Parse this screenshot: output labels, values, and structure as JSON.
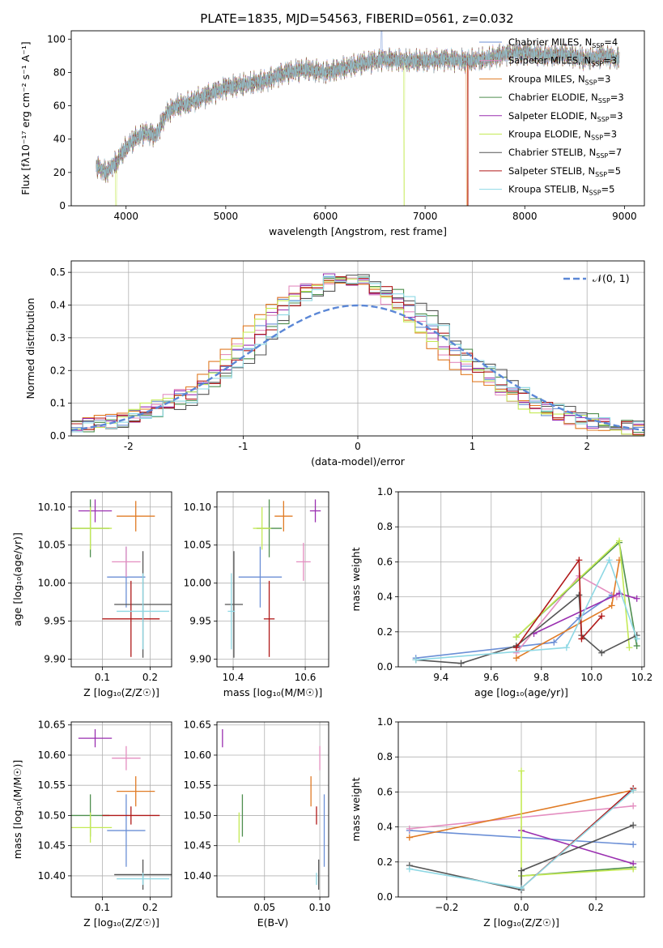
{
  "figure_title": "PLATE=1835, MJD=54563, FIBERID=0561, z=0.032",
  "colors": {
    "chabrier_miles": "#6b8fd6",
    "salpeter_miles": "#e48ec0",
    "kroupa_miles": "#e07b25",
    "chabrier_elodie": "#4f8f4f",
    "salpeter_elodie": "#9a2fb0",
    "kroupa_elodie": "#c4ea55",
    "chabrier_stelib": "#555555",
    "salpeter_stelib": "#b01818",
    "kroupa_stelib": "#8ed8e4",
    "gaussian": "#5b87d6"
  },
  "chart_data": [
    {
      "id": "spectrum",
      "type": "line",
      "xlabel": "wavelength [Angstrom, rest frame]",
      "ylabel": "Flux [fλ10⁻¹⁷ erg cm⁻² s⁻¹ A⁻¹]",
      "xlim": [
        3450,
        9200
      ],
      "ylim": [
        0,
        105
      ],
      "xticks": [
        4000,
        5000,
        6000,
        7000,
        8000,
        9000
      ],
      "yticks": [
        0,
        20,
        40,
        60,
        80,
        100
      ],
      "grid": false,
      "legend": "top-right",
      "legend_entries": [
        {
          "label": "Chabrier MILES, N",
          "sub": "SSP",
          "suffix": "=4",
          "color_key": "chabrier_miles"
        },
        {
          "label": "Salpeter MILES, N",
          "sub": "SSP",
          "suffix": "=3",
          "color_key": "salpeter_miles"
        },
        {
          "label": "Kroupa MILES, N",
          "sub": "SSP",
          "suffix": "=3",
          "color_key": "kroupa_miles"
        },
        {
          "label": "Chabrier ELODIE, N",
          "sub": "SSP",
          "suffix": "=3",
          "color_key": "chabrier_elodie"
        },
        {
          "label": "Salpeter ELODIE, N",
          "sub": "SSP",
          "suffix": "=3",
          "color_key": "salpeter_elodie"
        },
        {
          "label": "Kroupa ELODIE, N",
          "sub": "SSP",
          "suffix": "=3",
          "color_key": "kroupa_elodie"
        },
        {
          "label": "Chabrier STELIB, N",
          "sub": "SSP",
          "suffix": "=7",
          "color_key": "chabrier_stelib"
        },
        {
          "label": "Salpeter STELIB, N",
          "sub": "SSP",
          "suffix": "=5",
          "color_key": "salpeter_stelib"
        },
        {
          "label": "Kroupa STELIB, N",
          "sub": "SSP",
          "suffix": "=5",
          "color_key": "kroupa_stelib"
        }
      ],
      "continuum": {
        "x": [
          3700,
          3800,
          3900,
          4000,
          4100,
          4200,
          4300,
          4400,
          4500,
          4600,
          4800,
          5000,
          5200,
          5400,
          5600,
          5800,
          6000,
          6200,
          6400,
          6600,
          6800,
          7000,
          7200,
          7400,
          7600,
          7800,
          8000,
          8200,
          8400,
          8600,
          8800,
          8950
        ],
        "y": [
          24,
          20,
          26,
          35,
          41,
          44,
          42,
          55,
          60,
          61,
          66,
          71,
          73,
          75,
          80,
          82,
          80,
          83,
          86,
          88,
          87,
          87,
          88,
          87,
          88,
          91,
          92,
          90,
          91,
          88,
          90,
          88
        ]
      },
      "features": [
        {
          "series": "kroupa_elodie",
          "kind": "drop",
          "x": 3900,
          "to": 0
        },
        {
          "series": "kroupa_elodie",
          "kind": "drop",
          "x": 6790,
          "to": 0
        },
        {
          "series": "kroupa_miles",
          "kind": "drop",
          "x": 7420,
          "to": 0
        },
        {
          "series": "salpeter_stelib",
          "kind": "drop",
          "x": 7430,
          "to": 0
        },
        {
          "series": "chabrier_miles",
          "kind": "spike",
          "x": 6565,
          "to": 105
        }
      ]
    },
    {
      "id": "residuals",
      "type": "histogram",
      "xlabel": "(data-model)/error",
      "ylabel": "Normed distribution",
      "xlim": [
        -2.5,
        2.5
      ],
      "ylim": [
        0,
        0.535
      ],
      "xticks": [
        -2,
        -1,
        0,
        1,
        2
      ],
      "yticks": [
        0.0,
        0.1,
        0.2,
        0.3,
        0.4,
        0.5
      ],
      "grid": true,
      "legend": "top-right",
      "legend_label": "𝒩(0, 1)",
      "bin_width": 0.1,
      "bin_start": -2.5,
      "base_values": [
        0.03,
        0.035,
        0.04,
        0.045,
        0.05,
        0.06,
        0.075,
        0.09,
        0.1,
        0.12,
        0.14,
        0.16,
        0.19,
        0.22,
        0.25,
        0.28,
        0.32,
        0.36,
        0.4,
        0.43,
        0.45,
        0.47,
        0.48,
        0.48,
        0.47,
        0.46,
        0.45,
        0.43,
        0.41,
        0.38,
        0.35,
        0.32,
        0.28,
        0.25,
        0.22,
        0.2,
        0.17,
        0.15,
        0.13,
        0.11,
        0.09,
        0.08,
        0.065,
        0.055,
        0.05,
        0.04,
        0.035,
        0.03,
        0.025,
        0.02
      ],
      "series_shift": {
        "chabrier_miles": 0.0,
        "salpeter_miles": -0.05,
        "kroupa_miles": -0.1,
        "chabrier_elodie": 0.1,
        "salpeter_elodie": 0.0,
        "kroupa_elodie": -0.05,
        "chabrier_stelib": 0.15,
        "salpeter_stelib": 0.05,
        "kroupa_stelib": 0.1
      }
    },
    {
      "id": "age_vs_Z",
      "type": "errorbar",
      "xlabel": "Z [log₁₀(Z/Z☉)]",
      "ylabel": "age  [log₁₀(age/yr)]",
      "xlim": [
        0.035,
        0.245
      ],
      "ylim": [
        9.89,
        10.12
      ],
      "xticks": [
        0.1,
        0.2
      ],
      "xtick_labels": [
        "0.1",
        "0.2"
      ],
      "yticks": [
        9.9,
        9.95,
        10.0,
        10.05,
        10.1
      ],
      "ytick_labels": [
        "9.90",
        "9.95",
        "10.00",
        "10.05",
        "10.10"
      ],
      "grid": true,
      "points": [
        {
          "series": "chabrier_miles",
          "x": 0.15,
          "y": 10.008,
          "xerr": 0.04,
          "yerr": 0.04
        },
        {
          "series": "salpeter_miles",
          "x": 0.15,
          "y": 10.028,
          "xerr": 0.03,
          "yerr": 0.02
        },
        {
          "series": "kroupa_miles",
          "x": 0.17,
          "y": 10.088,
          "xerr": 0.04,
          "yerr": 0.02
        },
        {
          "series": "chabrier_elodie",
          "x": 0.075,
          "y": 10.072,
          "xerr": 0.04,
          "yerr": 0.038
        },
        {
          "series": "salpeter_elodie",
          "x": 0.085,
          "y": 10.095,
          "xerr": 0.035,
          "yerr": 0.015
        },
        {
          "series": "kroupa_elodie",
          "x": 0.075,
          "y": 10.072,
          "xerr": 0.045,
          "yerr": 0.028
        },
        {
          "series": "chabrier_stelib",
          "x": 0.185,
          "y": 9.972,
          "xerr": 0.06,
          "yerr": 0.07
        },
        {
          "series": "salpeter_stelib",
          "x": 0.16,
          "y": 9.953,
          "xerr": 0.06,
          "yerr": 0.05
        },
        {
          "series": "kroupa_stelib",
          "x": 0.185,
          "y": 9.963,
          "xerr": 0.055,
          "yerr": 0.05
        }
      ]
    },
    {
      "id": "age_vs_mass",
      "type": "errorbar",
      "xlabel": "mass [log₁₀(M/M☉)]",
      "ylabel": "",
      "xlim": [
        10.355,
        10.665
      ],
      "ylim": [
        9.89,
        10.12
      ],
      "xticks": [
        10.4,
        10.6
      ],
      "xtick_labels": [
        "10.4",
        "10.6"
      ],
      "yticks": [
        9.9,
        9.95,
        10.0,
        10.05,
        10.1
      ],
      "ytick_labels": [
        "9.90",
        "9.95",
        "10.00",
        "10.05",
        "10.10"
      ],
      "grid": true,
      "points": [
        {
          "series": "chabrier_miles",
          "x": 10.475,
          "y": 10.008,
          "xerr": 0.06,
          "yerr": 0.04
        },
        {
          "series": "salpeter_miles",
          "x": 10.595,
          "y": 10.028,
          "xerr": 0.02,
          "yerr": 0.025
        },
        {
          "series": "kroupa_miles",
          "x": 10.54,
          "y": 10.088,
          "xerr": 0.025,
          "yerr": 0.02
        },
        {
          "series": "chabrier_elodie",
          "x": 10.5,
          "y": 10.072,
          "xerr": 0.035,
          "yerr": 0.038
        },
        {
          "series": "salpeter_elodie",
          "x": 10.628,
          "y": 10.095,
          "xerr": 0.015,
          "yerr": 0.015
        },
        {
          "series": "kroupa_elodie",
          "x": 10.48,
          "y": 10.072,
          "xerr": 0.025,
          "yerr": 0.028
        },
        {
          "series": "chabrier_stelib",
          "x": 10.402,
          "y": 9.972,
          "xerr": 0.025,
          "yerr": 0.07
        },
        {
          "series": "salpeter_stelib",
          "x": 10.5,
          "y": 9.953,
          "xerr": 0.015,
          "yerr": 0.05
        },
        {
          "series": "kroupa_stelib",
          "x": 10.395,
          "y": 9.963,
          "xerr": 0.01,
          "yerr": 0.05
        }
      ]
    },
    {
      "id": "mass_vs_Z",
      "type": "errorbar",
      "xlabel": "Z [log₁₀(Z/Z☉)]",
      "ylabel": "mass [log₁₀(M/M☉)]",
      "xlim": [
        0.035,
        0.245
      ],
      "ylim": [
        10.365,
        10.655
      ],
      "xticks": [
        0.1,
        0.2
      ],
      "xtick_labels": [
        "0.1",
        "0.2"
      ],
      "yticks": [
        10.4,
        10.45,
        10.5,
        10.55,
        10.6,
        10.65
      ],
      "ytick_labels": [
        "10.40",
        "10.45",
        "10.50",
        "10.55",
        "10.60",
        "10.65"
      ],
      "grid": true,
      "points": [
        {
          "series": "chabrier_miles",
          "x": 0.15,
          "y": 10.475,
          "xerr": 0.04,
          "yerr": 0.06
        },
        {
          "series": "salpeter_miles",
          "x": 0.15,
          "y": 10.595,
          "xerr": 0.03,
          "yerr": 0.02
        },
        {
          "series": "kroupa_miles",
          "x": 0.17,
          "y": 10.54,
          "xerr": 0.04,
          "yerr": 0.025
        },
        {
          "series": "chabrier_elodie",
          "x": 0.075,
          "y": 10.5,
          "xerr": 0.04,
          "yerr": 0.035
        },
        {
          "series": "salpeter_elodie",
          "x": 0.085,
          "y": 10.628,
          "xerr": 0.035,
          "yerr": 0.015
        },
        {
          "series": "kroupa_elodie",
          "x": 0.075,
          "y": 10.48,
          "xerr": 0.045,
          "yerr": 0.025
        },
        {
          "series": "chabrier_stelib",
          "x": 0.185,
          "y": 10.402,
          "xerr": 0.06,
          "yerr": 0.025
        },
        {
          "series": "salpeter_stelib",
          "x": 0.16,
          "y": 10.5,
          "xerr": 0.06,
          "yerr": 0.015
        },
        {
          "series": "kroupa_stelib",
          "x": 0.185,
          "y": 10.395,
          "xerr": 0.055,
          "yerr": 0.01
        }
      ]
    },
    {
      "id": "mass_vs_ebv",
      "type": "errorbar",
      "xlabel": "E(B-V)",
      "ylabel": "",
      "xlim": [
        0.007,
        0.108
      ],
      "ylim": [
        10.365,
        10.655
      ],
      "xticks": [
        0.05,
        0.1
      ],
      "xtick_labels": [
        "0.05",
        "0.10"
      ],
      "yticks": [
        10.4,
        10.45,
        10.5,
        10.55,
        10.6,
        10.65
      ],
      "ytick_labels": [
        "10.40",
        "10.45",
        "10.50",
        "10.55",
        "10.60",
        "10.65"
      ],
      "grid": true,
      "points": [
        {
          "series": "chabrier_miles",
          "x": 0.104,
          "y": 10.475,
          "xerr": 0.0,
          "yerr": 0.06
        },
        {
          "series": "salpeter_miles",
          "x": 0.1,
          "y": 10.595,
          "xerr": 0.0,
          "yerr": 0.02
        },
        {
          "series": "kroupa_miles",
          "x": 0.092,
          "y": 10.54,
          "xerr": 0.0,
          "yerr": 0.025
        },
        {
          "series": "chabrier_elodie",
          "x": 0.03,
          "y": 10.5,
          "xerr": 0.0,
          "yerr": 0.035
        },
        {
          "series": "salpeter_elodie",
          "x": 0.012,
          "y": 10.628,
          "xerr": 0.0,
          "yerr": 0.015
        },
        {
          "series": "kroupa_elodie",
          "x": 0.027,
          "y": 10.48,
          "xerr": 0.0,
          "yerr": 0.025
        },
        {
          "series": "chabrier_stelib",
          "x": 0.099,
          "y": 10.402,
          "xerr": 0.0,
          "yerr": 0.025
        },
        {
          "series": "salpeter_stelib",
          "x": 0.097,
          "y": 10.5,
          "xerr": 0.0,
          "yerr": 0.015
        },
        {
          "series": "kroupa_stelib",
          "x": 0.097,
          "y": 10.395,
          "xerr": 0.0,
          "yerr": 0.01
        }
      ]
    },
    {
      "id": "weight_vs_age",
      "type": "line",
      "xlabel": "age  [log₁₀(age/yr)]",
      "ylabel": "mass weight",
      "xlim": [
        9.23,
        10.21
      ],
      "ylim": [
        0,
        1.0
      ],
      "xticks": [
        9.4,
        9.6,
        9.8,
        10.0,
        10.2
      ],
      "xtick_labels": [
        "9.4",
        "9.6",
        "9.8",
        "10.0",
        "10.2"
      ],
      "yticks": [
        0.0,
        0.2,
        0.4,
        0.6,
        0.8,
        1.0
      ],
      "ytick_labels": [
        "0.0",
        "0.2",
        "0.4",
        "0.6",
        "0.8",
        "1.0"
      ],
      "grid": true,
      "series": [
        {
          "name": "chabrier_miles",
          "x": [
            9.3,
            9.85,
            9.95,
            10.08
          ],
          "y": [
            0.05,
            0.14,
            0.28,
            0.41
          ]
        },
        {
          "name": "salpeter_miles",
          "x": [
            9.7,
            9.95,
            10.1
          ],
          "y": [
            0.08,
            0.52,
            0.4
          ]
        },
        {
          "name": "kroupa_miles",
          "x": [
            9.7,
            10.08,
            10.11
          ],
          "y": [
            0.05,
            0.35,
            0.61
          ]
        },
        {
          "name": "chabrier_elodie",
          "x": [
            9.7,
            10.11,
            10.18
          ],
          "y": [
            0.17,
            0.71,
            0.12
          ]
        },
        {
          "name": "salpeter_elodie",
          "x": [
            9.77,
            10.11,
            10.18
          ],
          "y": [
            0.19,
            0.42,
            0.39
          ]
        },
        {
          "name": "kroupa_elodie",
          "x": [
            9.7,
            10.11,
            10.15
          ],
          "y": [
            0.17,
            0.72,
            0.11
          ]
        },
        {
          "name": "chabrier_stelib",
          "x": [
            9.3,
            9.48,
            9.7,
            9.95,
            9.96,
            10.04,
            10.18
          ],
          "y": [
            0.04,
            0.02,
            0.12,
            0.41,
            0.18,
            0.08,
            0.18
          ]
        },
        {
          "name": "salpeter_stelib",
          "x": [
            9.7,
            9.95,
            9.96,
            10.04
          ],
          "y": [
            0.11,
            0.61,
            0.16,
            0.29
          ]
        },
        {
          "name": "kroupa_stelib",
          "x": [
            9.3,
            9.9,
            10.07,
            10.18
          ],
          "y": [
            0.04,
            0.11,
            0.61,
            0.16
          ]
        }
      ]
    },
    {
      "id": "weight_vs_Z",
      "type": "line",
      "xlabel": "Z [log₁₀(Z/Z☉)]",
      "ylabel": "mass weight",
      "xlim": [
        -0.33,
        0.33
      ],
      "ylim": [
        0,
        1.0
      ],
      "xticks": [
        -0.2,
        0.0,
        0.2
      ],
      "xtick_labels": [
        "−0.2",
        "0.0",
        "0.2"
      ],
      "yticks": [
        0.0,
        0.2,
        0.4,
        0.6,
        0.8,
        1.0
      ],
      "ytick_labels": [
        "0.0",
        "0.2",
        "0.4",
        "0.6",
        "0.8",
        "1.0"
      ],
      "grid": true,
      "series": [
        {
          "name": "chabrier_miles",
          "x": [
            -0.3,
            0.3
          ],
          "y": [
            0.38,
            0.3
          ]
        },
        {
          "name": "salpeter_miles",
          "x": [
            -0.3,
            0.3
          ],
          "y": [
            0.39,
            0.52
          ]
        },
        {
          "name": "kroupa_miles",
          "x": [
            -0.3,
            0.3
          ],
          "y": [
            0.34,
            0.61
          ]
        },
        {
          "name": "chabrier_elodie",
          "x": [
            0.0,
            0.3
          ],
          "y": [
            0.12,
            0.17
          ]
        },
        {
          "name": "salpeter_elodie",
          "x": [
            0.0,
            0.3
          ],
          "y": [
            0.38,
            0.19
          ]
        },
        {
          "name": "kroupa_elodie",
          "x": [
            0.0,
            0.0,
            0.3
          ],
          "y": [
            0.72,
            0.12,
            0.16
          ]
        },
        {
          "name": "chabrier_stelib",
          "x": [
            -0.3,
            0.0,
            0.0,
            0.3
          ],
          "y": [
            0.18,
            0.04,
            0.15,
            0.41
          ]
        },
        {
          "name": "salpeter_stelib",
          "x": [
            0.0,
            0.3
          ],
          "y": [
            0.05,
            0.62
          ]
        },
        {
          "name": "kroupa_stelib",
          "x": [
            -0.3,
            0.0,
            0.3
          ],
          "y": [
            0.16,
            0.05,
            0.61
          ]
        }
      ]
    }
  ]
}
